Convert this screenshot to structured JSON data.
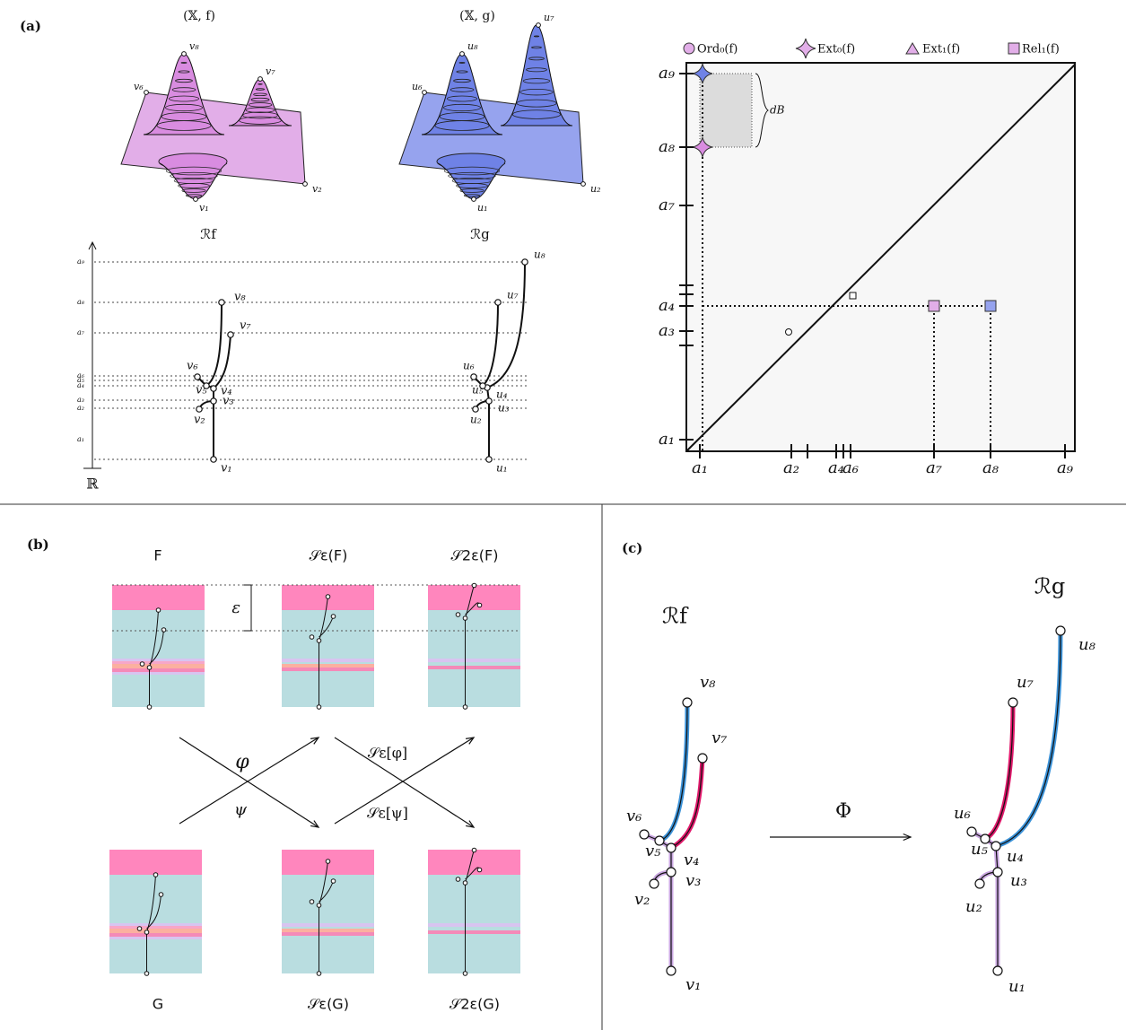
{
  "panel_a": {
    "label": "(a)",
    "surface_f": {
      "title": "(𝕏, f)",
      "labels": [
        "v₈",
        "v₇",
        "v₆",
        "v₂",
        "v₁"
      ]
    },
    "surface_g": {
      "title": "(𝕏, g)",
      "labels": [
        "u₈",
        "u₇",
        "u₆",
        "u₂",
        "u₁"
      ]
    },
    "reeb_f": {
      "title": "ℛf",
      "nodes": [
        "v₁",
        "v₂",
        "v₃",
        "v₄",
        "v₅",
        "v₆",
        "v₇",
        "v₈"
      ]
    },
    "reeb_g": {
      "title": "ℛg",
      "nodes": [
        "u₁",
        "u₂",
        "u₃",
        "u₄",
        "u₅",
        "u₆",
        "u₇",
        "u₈"
      ]
    },
    "levels": [
      "a₁",
      "a₂",
      "a₃",
      "a₄",
      "a₅",
      "a₆",
      "a₇",
      "a₈",
      "a₉"
    ],
    "axis_label": "ℝ",
    "diagram": {
      "legend": [
        "Ord₀(f)",
        "Ext₀(f)",
        "Ext₁(f)",
        "Rel₁(f)"
      ],
      "x_ticks": [
        "a₁",
        "a₂",
        "a₄",
        "a₆",
        "a₇",
        "a₈",
        "a₉"
      ],
      "y_ticks": [
        "a₁",
        "a₃",
        "a₄",
        "a₇",
        "a₈",
        "a₉"
      ],
      "distance_label": "dB"
    }
  },
  "panel_b": {
    "label": "(b)",
    "top": [
      "F",
      "𝒮ε(F)",
      "𝒮2ε(F)"
    ],
    "bottom": [
      "G",
      "𝒮ε(G)",
      "𝒮2ε(G)"
    ],
    "maps": [
      "φ",
      "ψ",
      "𝒮ε[φ]",
      "𝒮ε[ψ]"
    ],
    "epsilon": "ε"
  },
  "panel_c": {
    "label": "(c)",
    "reeb_f": {
      "title": "ℛf",
      "nodes": [
        "v₁",
        "v₂",
        "v₃",
        "v₄",
        "v₅",
        "v₆",
        "v₇",
        "v₈"
      ]
    },
    "reeb_g": {
      "title": "ℛg",
      "nodes": [
        "u₁",
        "u₂",
        "u₃",
        "u₄",
        "u₅",
        "u₆",
        "u₇",
        "u₈"
      ]
    },
    "map": "Φ"
  }
}
